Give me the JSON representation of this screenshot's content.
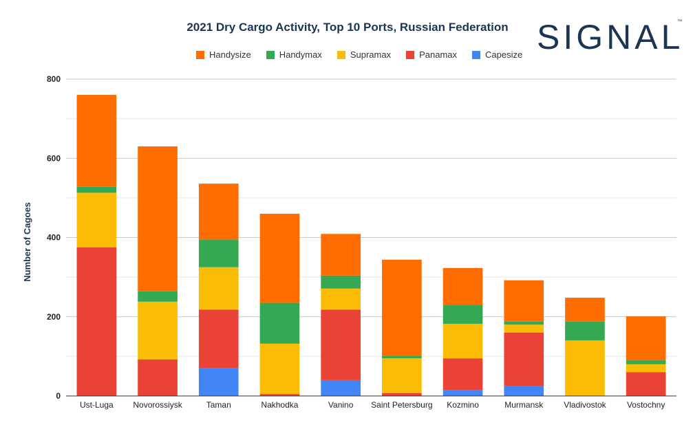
{
  "logo": {
    "text": "SIGNAL",
    "tm": "™"
  },
  "chart_data": {
    "type": "bar",
    "stacked": true,
    "title": "2021 Dry Cargo Activity, Top 10 Ports, Russian Federation",
    "xlabel": "",
    "ylabel": "Number of Cagoes",
    "ylim": [
      0,
      800
    ],
    "yticks": [
      0,
      200,
      400,
      600,
      800
    ],
    "grid": true,
    "legend_position": "top",
    "categories": [
      "Ust-Luga",
      "Novorossiysk",
      "Taman",
      "Nakhodka",
      "Vanino",
      "Saint Petersburg",
      "Kozmino",
      "Murmansk",
      "Vladivostok",
      "Vostochny"
    ],
    "series": [
      {
        "name": "Capesize",
        "color": "#4285f4",
        "values": [
          0,
          0,
          70,
          0,
          40,
          0,
          15,
          25,
          0,
          0
        ]
      },
      {
        "name": "Panamax",
        "color": "#ea4335",
        "values": [
          375,
          92,
          148,
          5,
          178,
          7,
          80,
          135,
          0,
          60
        ]
      },
      {
        "name": "Supramax",
        "color": "#fbbc04",
        "values": [
          138,
          146,
          107,
          127,
          53,
          88,
          87,
          20,
          140,
          20
        ]
      },
      {
        "name": "Handymax",
        "color": "#34a853",
        "values": [
          15,
          26,
          70,
          103,
          33,
          7,
          47,
          8,
          48,
          10
        ]
      },
      {
        "name": "Handysize",
        "color": "#ff6d01",
        "values": [
          232,
          366,
          141,
          225,
          105,
          242,
          94,
          104,
          60,
          111
        ]
      }
    ],
    "legend_order": [
      "Handysize",
      "Handymax",
      "Supramax",
      "Panamax",
      "Capesize"
    ]
  }
}
